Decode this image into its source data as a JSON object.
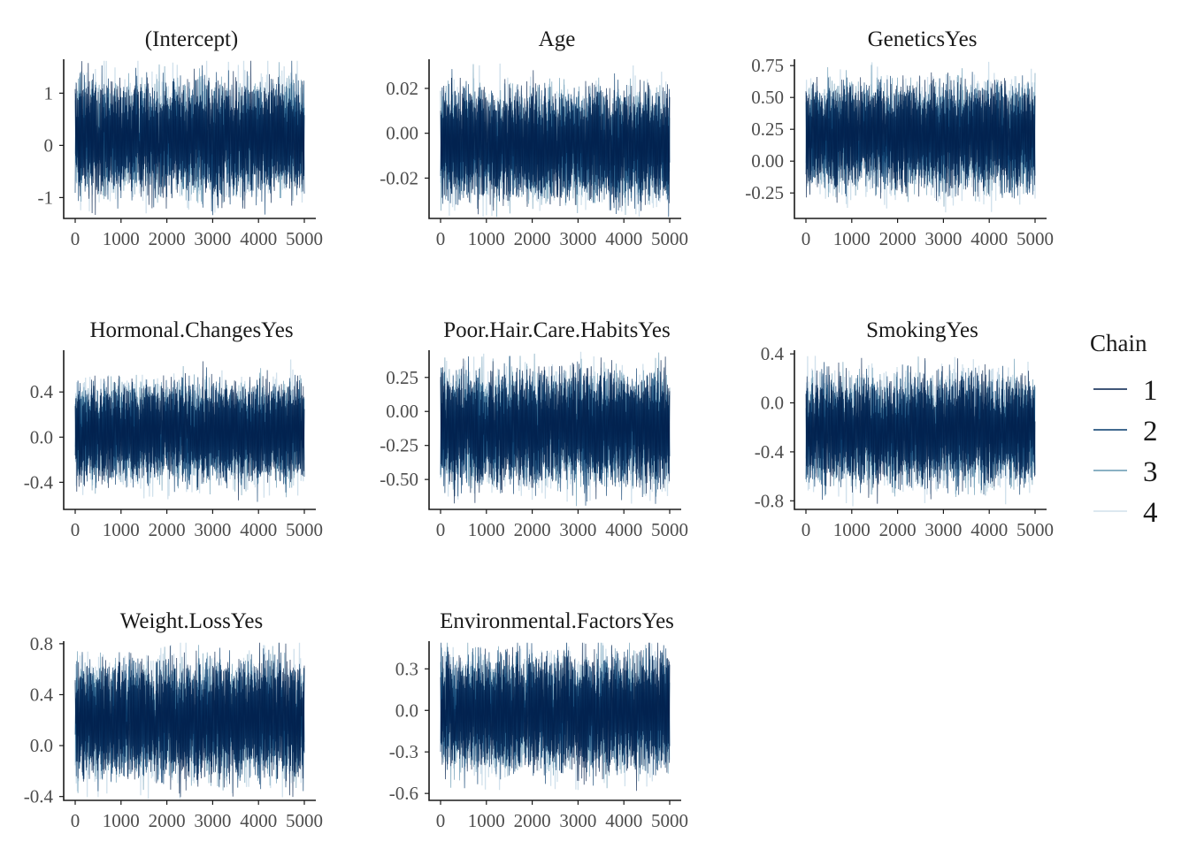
{
  "chart_data": {
    "type": "line",
    "description_kind": "MCMC trace plots, 4 chains, 5000 iterations",
    "x_ticks": [
      "0",
      "1000",
      "2000",
      "3000",
      "4000",
      "5000"
    ],
    "x_range": [
      0,
      5000
    ],
    "chain_colors": [
      "#011f4b",
      "#03396c",
      "#6497b1",
      "#d1e1ec"
    ],
    "legend": {
      "title": "Chain",
      "position": "right",
      "entries": [
        "1",
        "2",
        "3",
        "4"
      ]
    },
    "panels": [
      {
        "title": "(Intercept)",
        "ylim": [
          -1.4,
          1.65
        ],
        "y_ticks": [
          -1,
          0,
          1
        ],
        "y_tick_labels": [
          "-1",
          "0",
          "1"
        ],
        "center": 0.15,
        "band": 0.75,
        "noise": 0.3
      },
      {
        "title": "Age",
        "ylim": [
          -0.038,
          0.033
        ],
        "y_ticks": [
          -0.02,
          0.0,
          0.02
        ],
        "y_tick_labels": [
          "-0.02",
          "0.00",
          "0.02"
        ],
        "center": -0.005,
        "band": 0.017,
        "noise": 0.0065
      },
      {
        "title": "GeneticsYes",
        "ylim": [
          -0.45,
          0.8
        ],
        "y_ticks": [
          -0.25,
          0.0,
          0.25,
          0.5,
          0.75
        ],
        "y_tick_labels": [
          "-0.25",
          "0.00",
          "0.25",
          "0.50",
          "0.75"
        ],
        "center": 0.2,
        "band": 0.29,
        "noise": 0.11
      },
      {
        "title": "Hormonal.ChangesYes",
        "ylim": [
          -0.64,
          0.77
        ],
        "y_ticks": [
          -0.4,
          0.0,
          0.4
        ],
        "y_tick_labels": [
          "-0.4",
          "0.0",
          "0.4"
        ],
        "center": 0.05,
        "band": 0.31,
        "noise": 0.11
      },
      {
        "title": "Poor.Hair.Care.HabitsYes",
        "ylim": [
          -0.72,
          0.45
        ],
        "y_ticks": [
          -0.5,
          -0.25,
          0.0,
          0.25
        ],
        "y_tick_labels": [
          "-0.50",
          "-0.25",
          "0.00",
          "0.25"
        ],
        "center": -0.12,
        "band": 0.3,
        "noise": 0.11
      },
      {
        "title": "SmokingYes",
        "ylim": [
          -0.87,
          0.43
        ],
        "y_ticks": [
          -0.8,
          -0.4,
          0.0,
          0.4
        ],
        "y_tick_labels": [
          "-0.8",
          "-0.4",
          "0.0",
          "0.4"
        ],
        "center": -0.22,
        "band": 0.31,
        "noise": 0.12
      },
      {
        "title": "Weight.LossYes",
        "ylim": [
          -0.43,
          0.82
        ],
        "y_ticks": [
          -0.4,
          0.0,
          0.4,
          0.8
        ],
        "y_tick_labels": [
          "-0.4",
          "0.0",
          "0.4",
          "0.8"
        ],
        "center": 0.21,
        "band": 0.32,
        "noise": 0.12
      },
      {
        "title": "Environmental.FactorsYes",
        "ylim": [
          -0.65,
          0.5
        ],
        "y_ticks": [
          -0.6,
          -0.3,
          0.0,
          0.3
        ],
        "y_tick_labels": [
          "-0.6",
          "-0.3",
          "0.0",
          "0.3"
        ],
        "center": -0.01,
        "band": 0.29,
        "noise": 0.11
      }
    ]
  }
}
